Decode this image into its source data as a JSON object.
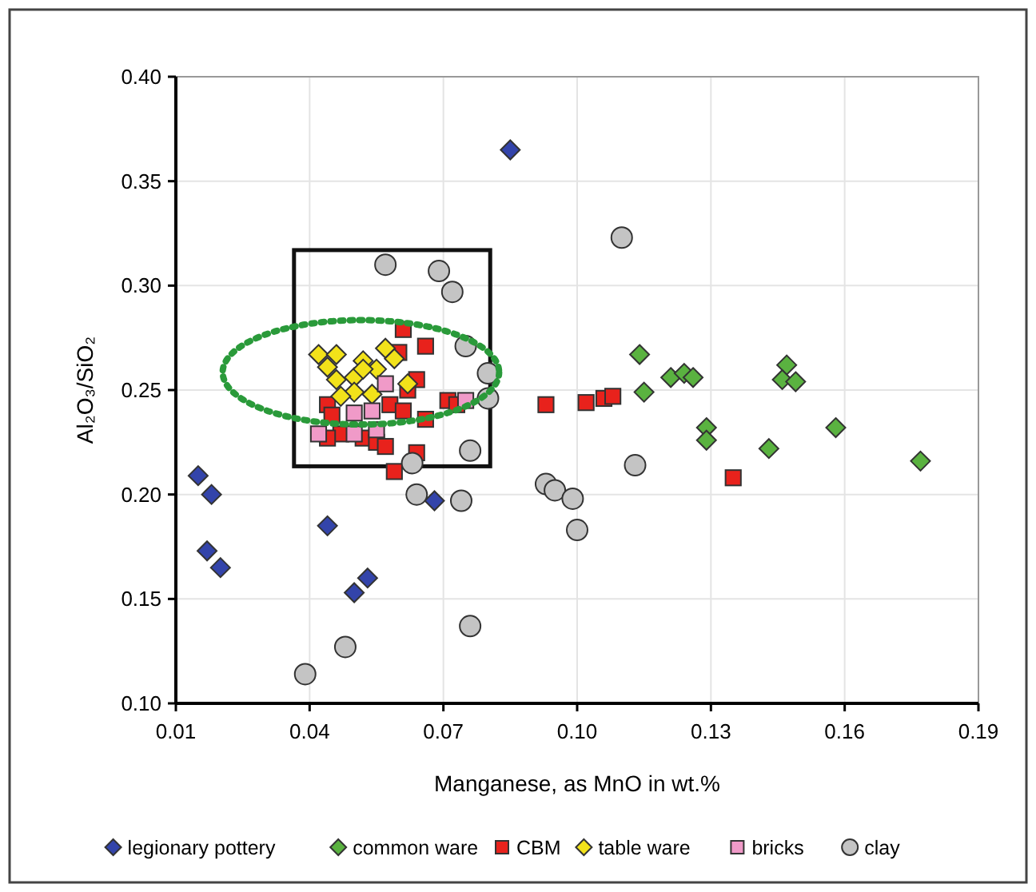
{
  "chart_data": {
    "type": "scatter",
    "xlabel": "Manganese, as MnO in wt.%",
    "ylabel": "Al₂O₃/SiO₂",
    "xlim": [
      0.01,
      0.19
    ],
    "xticks": [
      {
        "value": 0.01,
        "label": "0.01"
      },
      {
        "value": 0.04,
        "label": "0.04"
      },
      {
        "value": 0.07,
        "label": "0.07"
      },
      {
        "value": 0.1,
        "label": "0.10"
      },
      {
        "value": 0.13,
        "label": "0.13"
      },
      {
        "value": 0.16,
        "label": "0.16"
      },
      {
        "value": 0.19,
        "label": "0.19"
      }
    ],
    "ylim": [
      0.1,
      0.4
    ],
    "yticks": [
      {
        "value": 0.1,
        "label": "0.10"
      },
      {
        "value": 0.15,
        "label": "0.15"
      },
      {
        "value": 0.2,
        "label": "0.20"
      },
      {
        "value": 0.25,
        "label": "0.25"
      },
      {
        "value": 0.3,
        "label": "0.30"
      },
      {
        "value": 0.35,
        "label": "0.35"
      },
      {
        "value": 0.4,
        "label": "0.40"
      }
    ],
    "grid": true,
    "legend": "bottom",
    "series": [
      {
        "name": "legionary pottery",
        "color": "#3344aa",
        "marker": "diamond",
        "x": [
          0.015,
          0.018,
          0.017,
          0.02,
          0.044,
          0.05,
          0.053,
          0.068,
          0.085
        ],
        "values": [
          0.209,
          0.2,
          0.173,
          0.165,
          0.185,
          0.153,
          0.16,
          0.197,
          0.365
        ]
      },
      {
        "name": "common ware",
        "color": "#5ab240",
        "marker": "diamond",
        "x": [
          0.114,
          0.115,
          0.121,
          0.124,
          0.126,
          0.129,
          0.129,
          0.143,
          0.147,
          0.146,
          0.149,
          0.158,
          0.177
        ],
        "values": [
          0.267,
          0.249,
          0.256,
          0.258,
          0.256,
          0.232,
          0.226,
          0.222,
          0.262,
          0.255,
          0.254,
          0.232,
          0.216
        ]
      },
      {
        "name": "CBM",
        "color": "#e8221c",
        "marker": "square",
        "x": [
          0.093,
          0.102,
          0.106,
          0.108,
          0.135,
          0.061,
          0.066,
          0.06,
          0.064,
          0.062,
          0.071,
          0.073,
          0.044,
          0.045,
          0.058,
          0.061,
          0.066,
          0.047,
          0.052,
          0.055,
          0.057,
          0.064,
          0.059,
          0.044
        ],
        "values": [
          0.243,
          0.244,
          0.246,
          0.247,
          0.208,
          0.279,
          0.271,
          0.268,
          0.255,
          0.25,
          0.245,
          0.243,
          0.243,
          0.238,
          0.243,
          0.24,
          0.236,
          0.229,
          0.227,
          0.225,
          0.223,
          0.22,
          0.211,
          0.227
        ]
      },
      {
        "name": "table ware",
        "color": "#f2e21a",
        "marker": "diamond",
        "x": [
          0.042,
          0.046,
          0.052,
          0.057,
          0.059,
          0.044,
          0.055,
          0.05,
          0.046,
          0.062,
          0.05,
          0.047,
          0.054,
          0.052
        ],
        "values": [
          0.267,
          0.267,
          0.264,
          0.27,
          0.265,
          0.261,
          0.26,
          0.256,
          0.255,
          0.253,
          0.249,
          0.247,
          0.248,
          0.26
        ]
      },
      {
        "name": "bricks",
        "color": "#f09ac8",
        "marker": "square",
        "x": [
          0.057,
          0.075,
          0.054,
          0.05,
          0.042,
          0.05,
          0.055
        ],
        "values": [
          0.253,
          0.245,
          0.24,
          0.239,
          0.229,
          0.229,
          0.231
        ]
      },
      {
        "name": "clay",
        "color": "#c4c4c4",
        "marker": "circle",
        "x": [
          0.11,
          0.113,
          0.093,
          0.095,
          0.099,
          0.1,
          0.063,
          0.064,
          0.074,
          0.076,
          0.076,
          0.048,
          0.039,
          0.057,
          0.069,
          0.072,
          0.075,
          0.08,
          0.08
        ],
        "values": [
          0.323,
          0.214,
          0.205,
          0.202,
          0.198,
          0.183,
          0.215,
          0.2,
          0.197,
          0.221,
          0.137,
          0.127,
          0.114,
          0.31,
          0.307,
          0.297,
          0.271,
          0.258,
          0.246
        ]
      }
    ]
  }
}
